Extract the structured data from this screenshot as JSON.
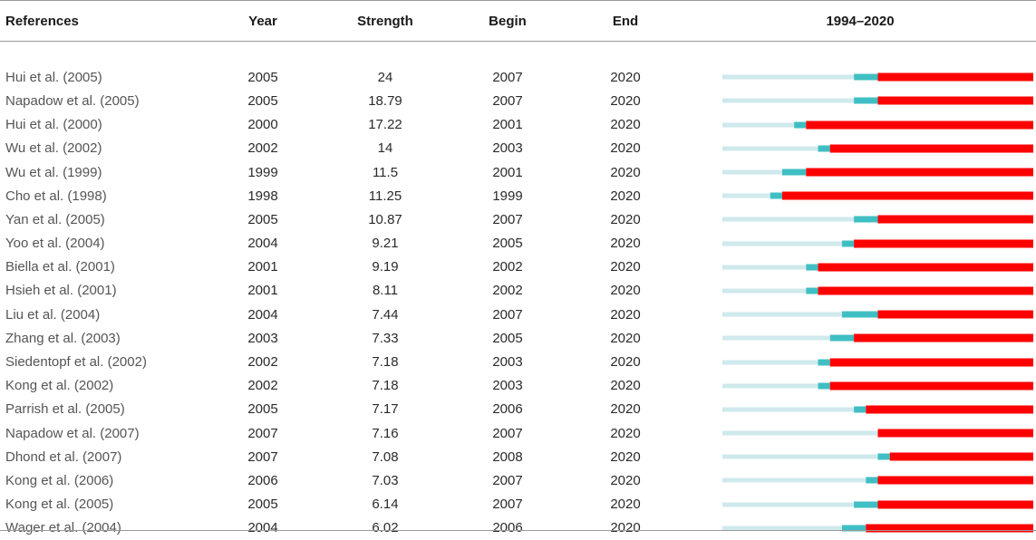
{
  "table": {
    "headers": {
      "references": "References",
      "year": "Year",
      "strength": "Strength",
      "begin": "Begin",
      "end": "End",
      "range": "1994–2020"
    }
  },
  "colors": {
    "background_period": "#cfe9ec",
    "published_period": "#3fbfc3",
    "burst_period": "#ff0000"
  },
  "chart_data": {
    "type": "table",
    "title": "",
    "timeline_start": 1994,
    "timeline_end": 2020,
    "columns": [
      "References",
      "Year",
      "Strength",
      "Begin",
      "End",
      "1994–2020"
    ],
    "rows": [
      {
        "reference": "Hui et al. (2005)",
        "year": "2005",
        "strength": "24",
        "begin": "2007",
        "end": "2020"
      },
      {
        "reference": "Napadow et al. (2005)",
        "year": "2005",
        "strength": "18.79",
        "begin": "2007",
        "end": "2020"
      },
      {
        "reference": "Hui et al. (2000)",
        "year": "2000",
        "strength": "17.22",
        "begin": "2001",
        "end": "2020"
      },
      {
        "reference": "Wu et al. (2002)",
        "year": "2002",
        "strength": "14",
        "begin": "2003",
        "end": "2020"
      },
      {
        "reference": "Wu et al. (1999)",
        "year": "1999",
        "strength": "11.5",
        "begin": "2001",
        "end": "2020"
      },
      {
        "reference": "Cho et al. (1998)",
        "year": "1998",
        "strength": "11.25",
        "begin": "1999",
        "end": "2020"
      },
      {
        "reference": "Yan et al. (2005)",
        "year": "2005",
        "strength": "10.87",
        "begin": "2007",
        "end": "2020"
      },
      {
        "reference": "Yoo et al. (2004)",
        "year": "2004",
        "strength": "9.21",
        "begin": "2005",
        "end": "2020"
      },
      {
        "reference": "Biella et al. (2001)",
        "year": "2001",
        "strength": "9.19",
        "begin": "2002",
        "end": "2020"
      },
      {
        "reference": "Hsieh et al. (2001)",
        "year": "2001",
        "strength": "8.11",
        "begin": "2002",
        "end": "2020"
      },
      {
        "reference": "Liu et al. (2004)",
        "year": "2004",
        "strength": "7.44",
        "begin": "2007",
        "end": "2020"
      },
      {
        "reference": "Zhang et al. (2003)",
        "year": "2003",
        "strength": "7.33",
        "begin": "2005",
        "end": "2020"
      },
      {
        "reference": "Siedentopf et al. (2002)",
        "year": "2002",
        "strength": "7.18",
        "begin": "2003",
        "end": "2020"
      },
      {
        "reference": "Kong et al. (2002)",
        "year": "2002",
        "strength": "7.18",
        "begin": "2003",
        "end": "2020"
      },
      {
        "reference": "Parrish et al. (2005)",
        "year": "2005",
        "strength": "7.17",
        "begin": "2006",
        "end": "2020"
      },
      {
        "reference": "Napadow et al. (2007)",
        "year": "2007",
        "strength": "7.16",
        "begin": "2007",
        "end": "2020"
      },
      {
        "reference": "Dhond et al. (2007)",
        "year": "2007",
        "strength": "7.08",
        "begin": "2008",
        "end": "2020"
      },
      {
        "reference": "Kong et al. (2006)",
        "year": "2006",
        "strength": "7.03",
        "begin": "2007",
        "end": "2020"
      },
      {
        "reference": "Kong et al. (2005)",
        "year": "2005",
        "strength": "6.14",
        "begin": "2007",
        "end": "2020"
      },
      {
        "reference": "Wager et al. (2004)",
        "year": "2004",
        "strength": "6.02",
        "begin": "2006",
        "end": "2020"
      }
    ]
  }
}
